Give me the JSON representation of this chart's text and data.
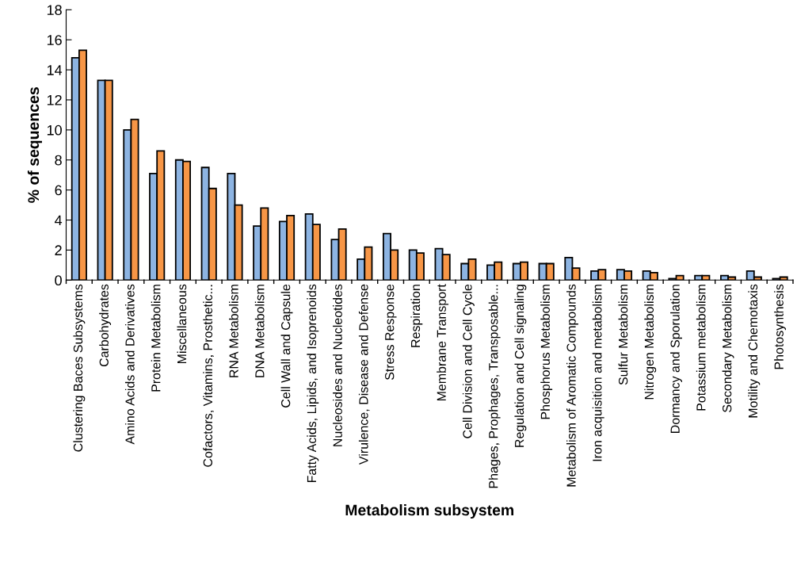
{
  "chart_data": {
    "type": "bar",
    "xlabel": "Metabolism subsystem",
    "ylabel": "% of sequences",
    "categories": [
      "Clustering Baces Subsystems",
      "Carbohydrates",
      "Amino Acids and Derivatives",
      "Protein Metabolism",
      "Miscellaneous",
      "Cofactors, Vitamins, Prosthetic...",
      "RNA Metabolism",
      "DNA Metabolism",
      "Cell Wall and Capsule",
      "Fatty Acids, Lipids, and Isoprenoids",
      "Nucleosides and Nucleotides",
      "Virulence, Disease and Defense",
      "Stress Response",
      "Respiration",
      "Membrane Transport",
      "Cell Division and Cell Cycle",
      "Phages, Prophages, Transposable...",
      "Regulation and Cell signaling",
      "Phosphorus Metabolism",
      "Metabolism of Aromatic Compounds",
      "Iron acquisition and metabolism",
      "Sulfur Metabolism",
      "Nitrogen Metabolism",
      "Dormancy and Sporulation",
      "Potassium metabolism",
      "Secondary Metabolism",
      "Motility and Chemotaxis",
      "Photosynthesis"
    ],
    "series": [
      {
        "color": "#8db4e2",
        "values": [
          14.8,
          13.3,
          10.0,
          7.1,
          8.0,
          7.5,
          7.1,
          3.6,
          3.9,
          4.4,
          2.7,
          1.4,
          3.1,
          2.0,
          2.1,
          1.1,
          1.0,
          1.1,
          1.1,
          1.5,
          0.6,
          0.7,
          0.6,
          0.1,
          0.3,
          0.3,
          0.6,
          0.1
        ]
      },
      {
        "color": "#f79646",
        "values": [
          15.3,
          13.3,
          10.7,
          8.6,
          7.9,
          6.1,
          5.0,
          4.8,
          4.3,
          3.7,
          3.4,
          2.2,
          2.0,
          1.8,
          1.7,
          1.4,
          1.2,
          1.2,
          1.1,
          0.8,
          0.7,
          0.6,
          0.5,
          0.3,
          0.3,
          0.2,
          0.2,
          0.2
        ]
      }
    ],
    "ylim": [
      0,
      18
    ],
    "yticks": [
      0,
      2,
      4,
      6,
      8,
      10,
      12,
      14,
      16,
      18
    ],
    "grid": false,
    "legend": false
  }
}
